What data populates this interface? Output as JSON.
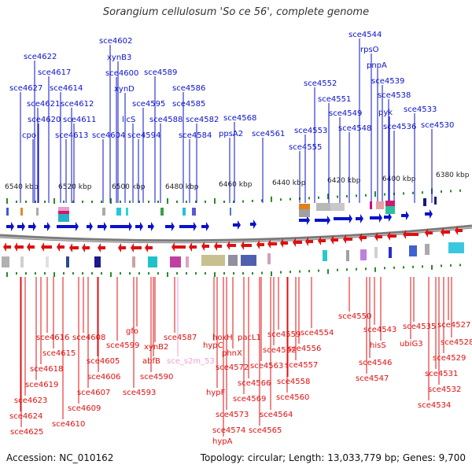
{
  "title": "Sorangium cellulosum 'So ce 56', complete genome",
  "accession_text": "Accession: NC_010162",
  "summary_text": "Topology: circular; Length: 13,033,779 bp; Genes: 9,700",
  "colors": {
    "forward": "#0b12c9",
    "reverse": "#e01010",
    "pseudo": "#f0a0d0",
    "backbone": "#7a7a7a",
    "ticks": "#2a8a2a"
  },
  "scale_ticks": [
    "6540 kbp",
    "6520 kbp",
    "6500 kbp",
    "6480 kbp",
    "6460 kbp",
    "6440 kbp",
    "6420 kbp",
    "6400 kbp",
    "6380 kbp"
  ],
  "forward_labels": [
    "sce4602",
    "xynB3",
    "sce4600",
    "xynD",
    "sce4622",
    "sce4617",
    "sce4627",
    "sce4614",
    "sce4621",
    "sce4612",
    "sce4620",
    "sce4611",
    "cpo",
    "sce4613",
    "sce4604",
    "licS",
    "sce4595",
    "sce4594",
    "sce4589",
    "sce4586",
    "sce4585",
    "sce4588",
    "sce4582",
    "sce4584",
    "sce4568",
    "ppsA2",
    "sce4561",
    "sce4544",
    "rpsO",
    "pnpA",
    "sce4552",
    "sce4539",
    "sce4551",
    "sce4538",
    "sce4549",
    "pyk",
    "sce4533",
    "sce4553",
    "sce4548",
    "sce4536",
    "sce4530",
    "sce4555"
  ],
  "reverse_labels": [
    "gfo",
    "sce4587",
    "sce4616",
    "sce4608",
    "sce4599",
    "xynB2",
    "sce4615",
    "sce4605",
    "abfB",
    "sce_s2m_53",
    "sce4590",
    "sce4618",
    "sce4606",
    "sce4619",
    "sce4593",
    "sce4607",
    "sce4623",
    "sce4609",
    "sce4624",
    "sce4610",
    "sce4625",
    "hoxH",
    "pacL1",
    "sce4559",
    "sce4554",
    "hypC",
    "sce4562",
    "sce4556",
    "phnX",
    "sce4572",
    "sce4563",
    "sce4557",
    "sce4566",
    "sce4558",
    "hypF",
    "sce4569",
    "sce4560",
    "sce4573",
    "sce4564",
    "sce4574",
    "sce4565",
    "hypA",
    "sce4550",
    "sce4543",
    "hisS",
    "sce4535",
    "sce4527",
    "ubiG3",
    "sce4528",
    "sce4546",
    "sce4529",
    "sce4547",
    "sce4531",
    "sce4532",
    "sce4534"
  ]
}
